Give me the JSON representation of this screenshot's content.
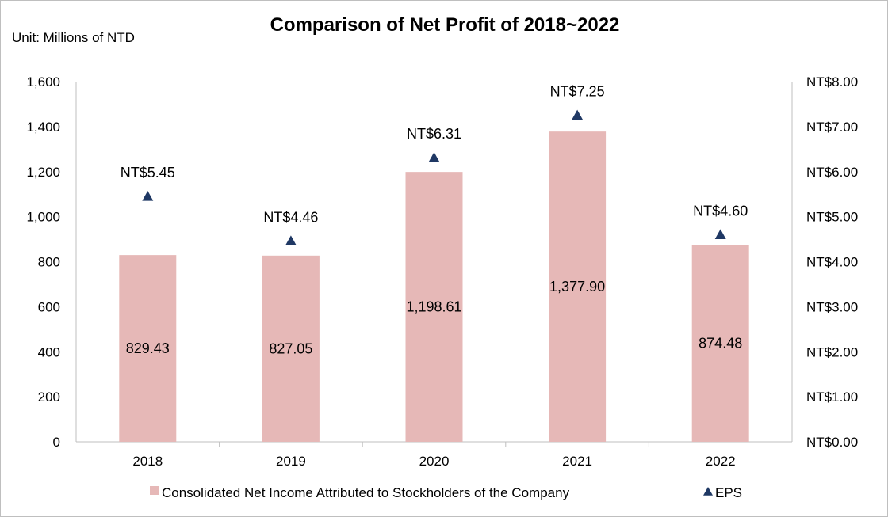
{
  "chart_data": {
    "type": "bar",
    "title": "Comparison of Net Profit of 2018~2022",
    "unit_note": "Unit: Millions of NTD",
    "categories": [
      "2018",
      "2019",
      "2020",
      "2021",
      "2022"
    ],
    "left_axis": {
      "ylim": [
        0,
        1600
      ],
      "ticks": [
        "0",
        "200",
        "400",
        "600",
        "800",
        "1,000",
        "1,200",
        "1,400",
        "1,600"
      ],
      "tick_values": [
        0,
        200,
        400,
        600,
        800,
        1000,
        1200,
        1400,
        1600
      ]
    },
    "right_axis": {
      "ylim": [
        0,
        8
      ],
      "ticks": [
        "NT$0.00",
        "NT$1.00",
        "NT$2.00",
        "NT$3.00",
        "NT$4.00",
        "NT$5.00",
        "NT$6.00",
        "NT$7.00",
        "NT$8.00"
      ],
      "tick_values": [
        0,
        1,
        2,
        3,
        4,
        5,
        6,
        7,
        8
      ]
    },
    "series": [
      {
        "name": "Consolidated Net Income Attributed to Stockholders of the Company",
        "type": "bar",
        "axis": "left",
        "color": "#e6b8b7",
        "values": [
          829.43,
          827.05,
          1198.61,
          1377.9,
          874.48
        ],
        "labels": [
          "829.43",
          "827.05",
          "1,198.61",
          "1,377.90",
          "874.48"
        ]
      },
      {
        "name": "EPS",
        "type": "scatter",
        "marker": "triangle",
        "axis": "right",
        "color": "#1f3864",
        "values": [
          5.45,
          4.46,
          6.31,
          7.25,
          4.6
        ],
        "labels": [
          "NT$5.45",
          "NT$4.46",
          "NT$6.31",
          "NT$7.25",
          "NT$4.60"
        ]
      }
    ],
    "grid": false,
    "legend": "bottom"
  }
}
